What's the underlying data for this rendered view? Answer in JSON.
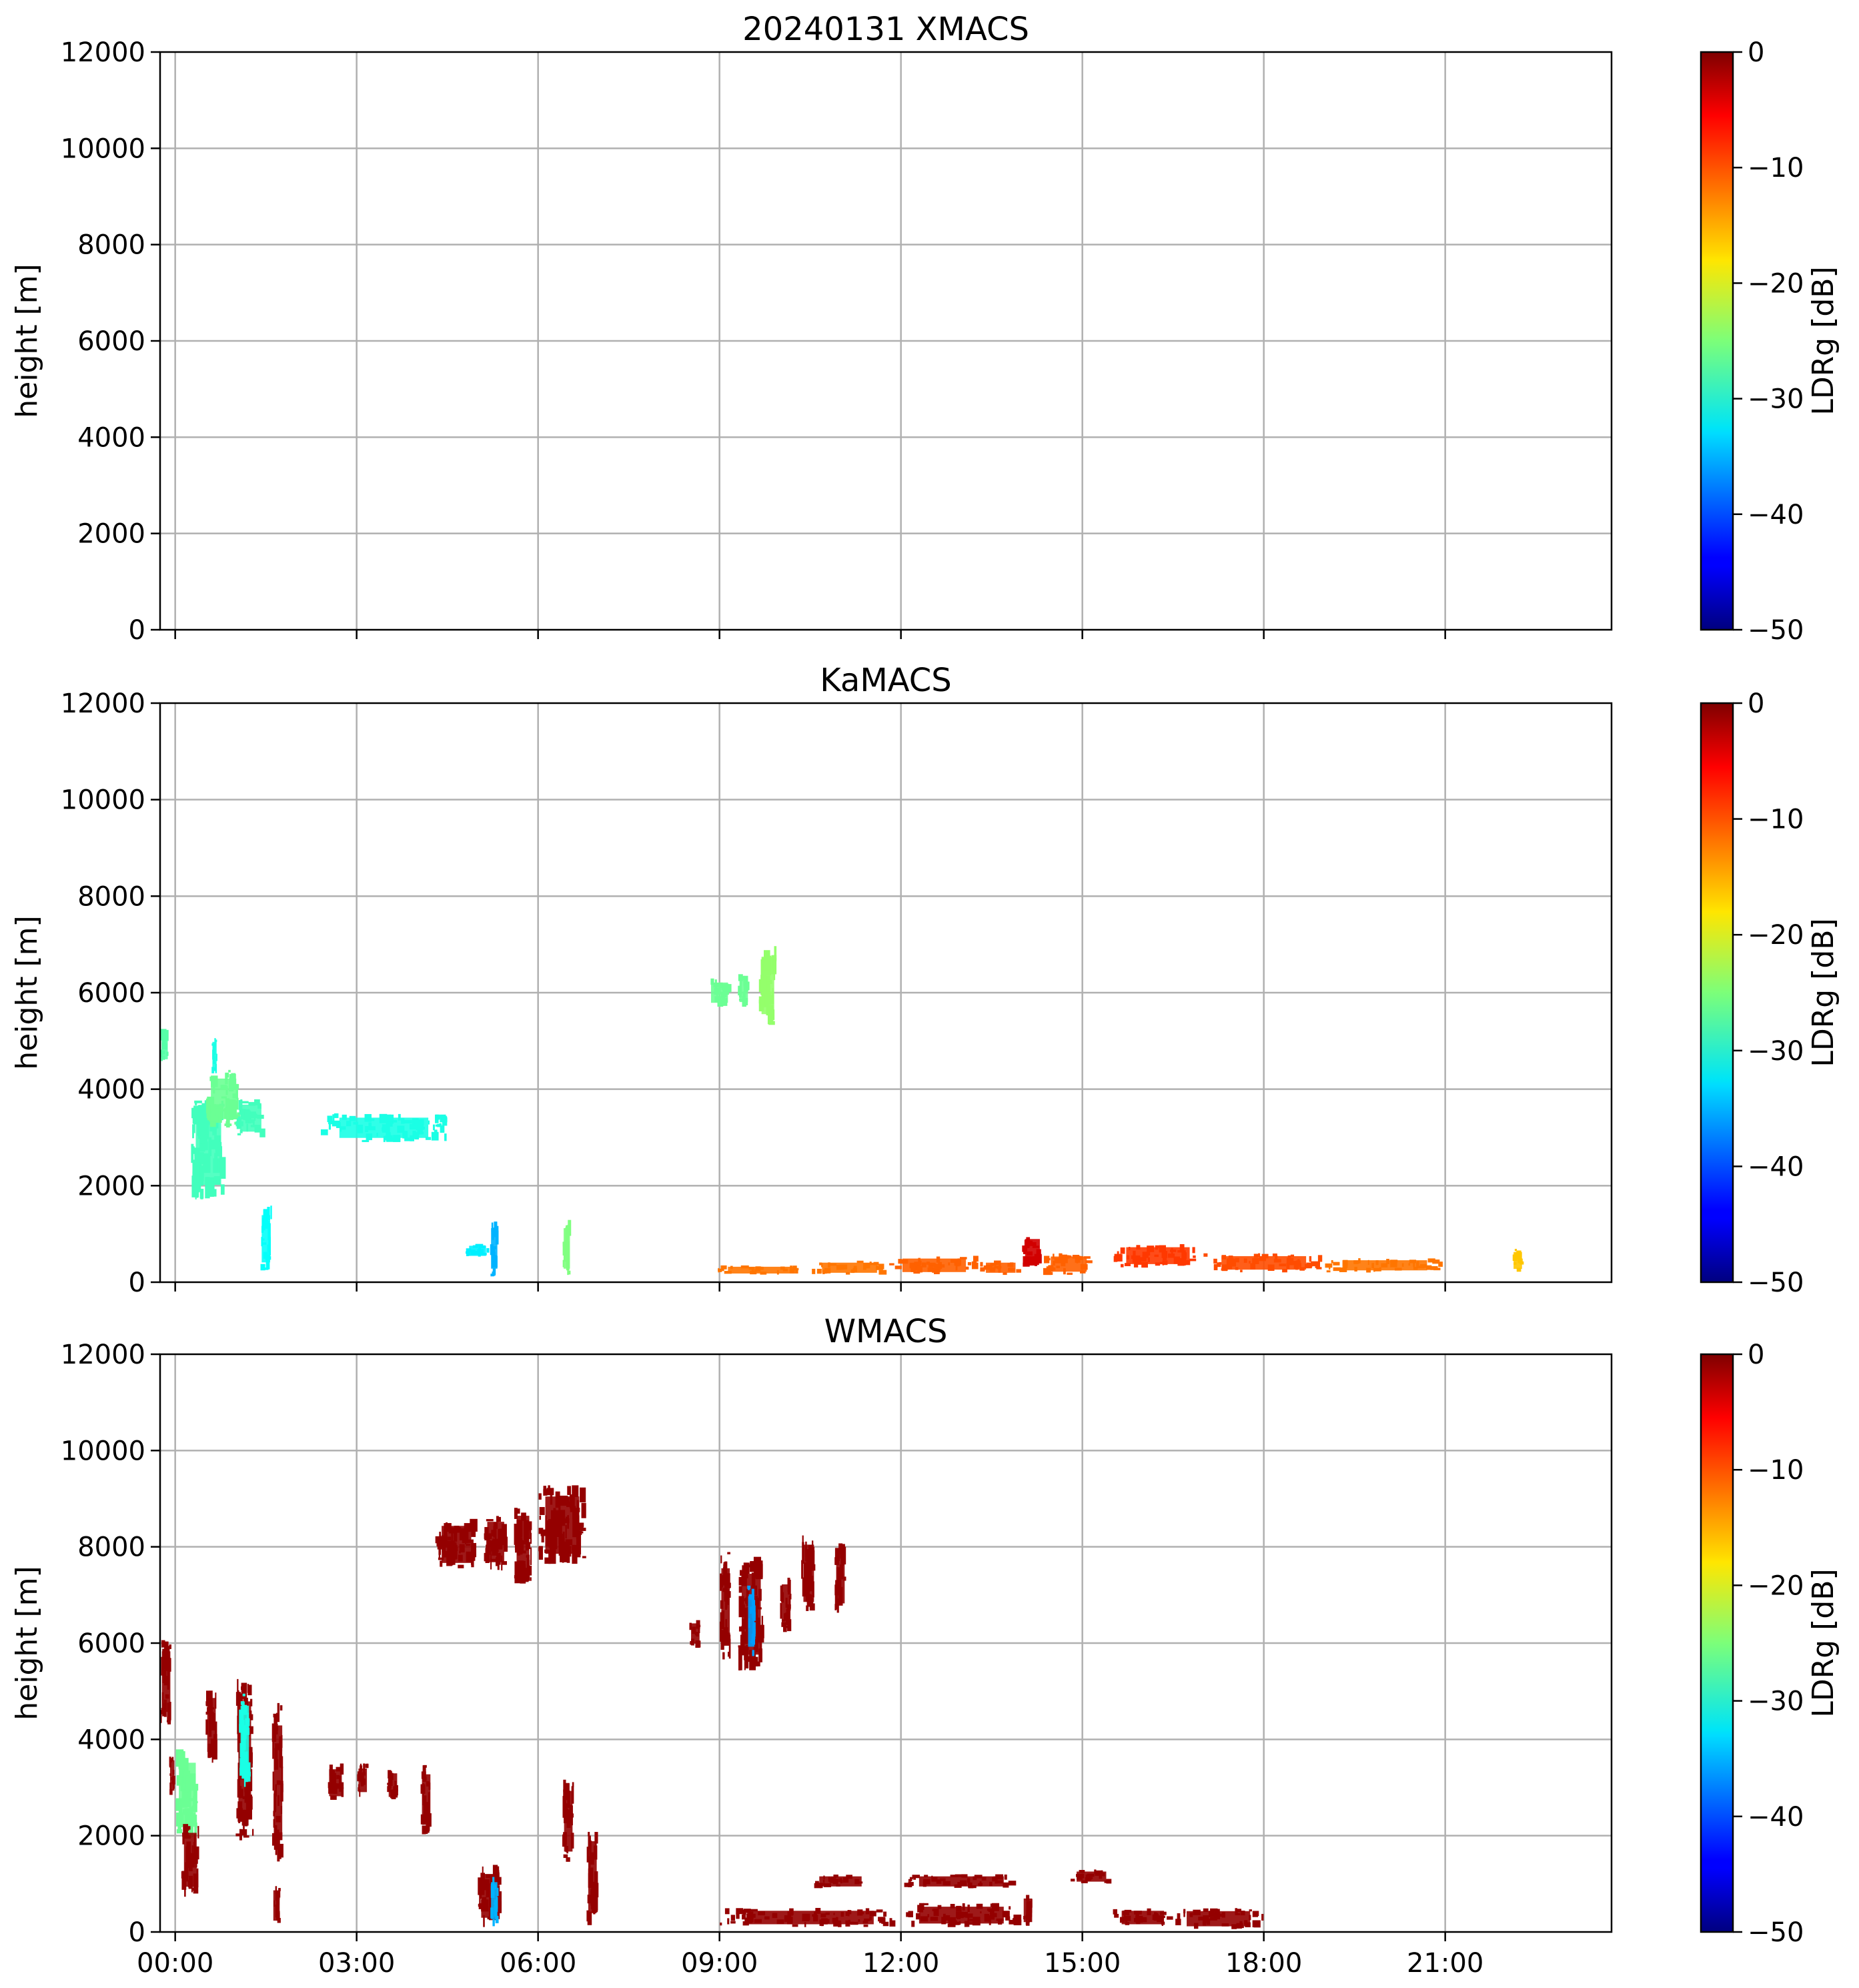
{
  "chart_data": [
    {
      "type": "heatmap",
      "title": "20240131 XMACS",
      "xlabel": "",
      "ylabel": "height [m]",
      "ylim": [
        0,
        12000
      ],
      "xlim": [
        -0.25,
        23.75
      ],
      "yticks": [
        "0",
        "2000",
        "4000",
        "6000",
        "8000",
        "10000",
        "12000"
      ],
      "xticks": [],
      "grid": true,
      "colorbar": {
        "label": "LDRg [dB]",
        "range": [
          -50,
          0
        ],
        "ticks": [
          "0",
          "−10",
          "−20",
          "−30",
          "−40",
          "−50"
        ],
        "colormap": "jet"
      },
      "regions": []
    },
    {
      "type": "heatmap",
      "title": "KaMACS",
      "xlabel": "",
      "ylabel": "height [m]",
      "ylim": [
        0,
        12000
      ],
      "xlim": [
        -0.25,
        23.75
      ],
      "yticks": [
        "0",
        "2000",
        "4000",
        "6000",
        "8000",
        "10000",
        "12000"
      ],
      "xticks": [],
      "grid": true,
      "colorbar": {
        "label": "LDRg [dB]",
        "range": [
          -50,
          0
        ],
        "ticks": [
          "0",
          "−10",
          "−20",
          "−30",
          "−40",
          "−50"
        ],
        "colormap": "jet"
      },
      "regions": [
        {
          "t0": -0.25,
          "t1": -0.1,
          "z0": 4500,
          "z1": 5300,
          "value": -27
        },
        {
          "t0": 0.25,
          "t1": 0.85,
          "z0": 1700,
          "z1": 3800,
          "value": -28
        },
        {
          "t0": 0.5,
          "t1": 1.1,
          "z0": 3200,
          "z1": 4400,
          "value": -26
        },
        {
          "t0": 0.6,
          "t1": 0.7,
          "z0": 4300,
          "z1": 5100,
          "value": -30
        },
        {
          "t0": 1.0,
          "t1": 1.5,
          "z0": 3000,
          "z1": 3800,
          "value": -28
        },
        {
          "t0": 1.4,
          "t1": 1.6,
          "z0": 200,
          "z1": 1600,
          "value": -31
        },
        {
          "t0": 2.4,
          "t1": 4.5,
          "z0": 2900,
          "z1": 3500,
          "value": -30
        },
        {
          "t0": 4.8,
          "t1": 5.2,
          "z0": 500,
          "z1": 800,
          "value": -32
        },
        {
          "t0": 5.2,
          "t1": 5.35,
          "z0": 100,
          "z1": 1300,
          "value": -35
        },
        {
          "t0": 6.4,
          "t1": 6.55,
          "z0": 100,
          "z1": 1300,
          "value": -25
        },
        {
          "t0": 8.8,
          "t1": 9.2,
          "z0": 5700,
          "z1": 6300,
          "value": -26
        },
        {
          "t0": 9.3,
          "t1": 9.5,
          "z0": 5700,
          "z1": 6400,
          "value": -26
        },
        {
          "t0": 9.65,
          "t1": 9.95,
          "z0": 5300,
          "z1": 7000,
          "value": -24
        },
        {
          "t0": 8.9,
          "t1": 10.5,
          "z0": 150,
          "z1": 350,
          "value": -12
        },
        {
          "t0": 10.5,
          "t1": 11.8,
          "z0": 150,
          "z1": 450,
          "value": -12
        },
        {
          "t0": 11.8,
          "t1": 13.3,
          "z0": 150,
          "z1": 550,
          "value": -11
        },
        {
          "t0": 13.3,
          "t1": 14.0,
          "z0": 150,
          "z1": 450,
          "value": -11
        },
        {
          "t0": 14.0,
          "t1": 14.35,
          "z0": 300,
          "z1": 1000,
          "value": -4
        },
        {
          "t0": 14.35,
          "t1": 15.2,
          "z0": 150,
          "z1": 600,
          "value": -11
        },
        {
          "t0": 15.5,
          "t1": 17.0,
          "z0": 300,
          "z1": 800,
          "value": -9
        },
        {
          "t0": 17.0,
          "t1": 19.0,
          "z0": 200,
          "z1": 600,
          "value": -10
        },
        {
          "t0": 19.0,
          "t1": 21.0,
          "z0": 200,
          "z1": 500,
          "value": -12
        },
        {
          "t0": 22.1,
          "t1": 22.3,
          "z0": 200,
          "z1": 700,
          "value": -16
        }
      ]
    },
    {
      "type": "heatmap",
      "title": "WMACS",
      "xlabel": "",
      "ylabel": "height [m]",
      "ylim": [
        0,
        12000
      ],
      "xlim": [
        -0.25,
        23.75
      ],
      "yticks": [
        "0",
        "2000",
        "4000",
        "6000",
        "8000",
        "10000",
        "12000"
      ],
      "xticks": [
        "00:00",
        "03:00",
        "06:00",
        "09:00",
        "12:00",
        "15:00",
        "18:00",
        "21:00"
      ],
      "grid": true,
      "colorbar": {
        "label": "LDRg [dB]",
        "range": [
          -50,
          0
        ],
        "ticks": [
          "0",
          "−10",
          "−20",
          "−30",
          "−40",
          "−50"
        ],
        "colormap": "jet"
      },
      "regions": [
        {
          "t0": -0.25,
          "t1": -0.05,
          "z0": 4300,
          "z1": 6100,
          "value": -1
        },
        {
          "t0": -0.1,
          "t1": 0.0,
          "z0": 2800,
          "z1": 3700,
          "value": -1
        },
        {
          "t0": 0.0,
          "t1": 0.4,
          "z0": 1900,
          "z1": 3800,
          "value": -26
        },
        {
          "t0": 0.1,
          "t1": 0.4,
          "z0": 700,
          "z1": 2300,
          "value": -1
        },
        {
          "t0": 0.5,
          "t1": 0.7,
          "z0": 3500,
          "z1": 5100,
          "value": -1
        },
        {
          "t0": 1.0,
          "t1": 1.3,
          "z0": 1900,
          "z1": 5300,
          "value": -1
        },
        {
          "t0": 1.05,
          "t1": 1.25,
          "z0": 3000,
          "z1": 5000,
          "value": -30
        },
        {
          "t0": 1.6,
          "t1": 1.8,
          "z0": 1400,
          "z1": 4800,
          "value": -1
        },
        {
          "t0": 1.6,
          "t1": 1.75,
          "z0": 100,
          "z1": 1000,
          "value": -1
        },
        {
          "t0": 2.5,
          "t1": 2.8,
          "z0": 2700,
          "z1": 3500,
          "value": -1
        },
        {
          "t0": 3.0,
          "t1": 3.2,
          "z0": 2800,
          "z1": 3500,
          "value": -1
        },
        {
          "t0": 3.5,
          "t1": 3.7,
          "z0": 2700,
          "z1": 3400,
          "value": -1
        },
        {
          "t0": 4.05,
          "t1": 4.25,
          "z0": 2000,
          "z1": 3500,
          "value": -1
        },
        {
          "t0": 4.3,
          "t1": 5.0,
          "z0": 7500,
          "z1": 8600,
          "value": -1
        },
        {
          "t0": 5.1,
          "t1": 5.5,
          "z0": 7500,
          "z1": 8700,
          "value": -1
        },
        {
          "t0": 5.6,
          "t1": 5.9,
          "z0": 7200,
          "z1": 8900,
          "value": -1
        },
        {
          "t0": 6.0,
          "t1": 6.8,
          "z0": 7600,
          "z1": 9300,
          "value": -1
        },
        {
          "t0": 5.0,
          "t1": 5.4,
          "z0": 100,
          "z1": 1400,
          "value": -1
        },
        {
          "t0": 5.2,
          "t1": 5.35,
          "z0": 100,
          "z1": 1200,
          "value": -35
        },
        {
          "t0": 6.4,
          "t1": 6.6,
          "z0": 1400,
          "z1": 3200,
          "value": -1
        },
        {
          "t0": 6.8,
          "t1": 7.0,
          "z0": 100,
          "z1": 2200,
          "value": -1
        },
        {
          "t0": 8.5,
          "t1": 8.7,
          "z0": 5900,
          "z1": 6500,
          "value": -1
        },
        {
          "t0": 9.0,
          "t1": 9.2,
          "z0": 5600,
          "z1": 7900,
          "value": -1
        },
        {
          "t0": 9.3,
          "t1": 9.75,
          "z0": 5400,
          "z1": 7800,
          "value": -1
        },
        {
          "t0": 9.45,
          "t1": 9.6,
          "z0": 5700,
          "z1": 7200,
          "value": -36
        },
        {
          "t0": 10.0,
          "t1": 10.2,
          "z0": 6200,
          "z1": 7400,
          "value": -1
        },
        {
          "t0": 10.35,
          "t1": 10.6,
          "z0": 6600,
          "z1": 8300,
          "value": -1
        },
        {
          "t0": 10.9,
          "t1": 11.1,
          "z0": 6600,
          "z1": 8100,
          "value": -1
        },
        {
          "t0": 9.0,
          "t1": 12.0,
          "z0": 100,
          "z1": 500,
          "value": -1
        },
        {
          "t0": 10.5,
          "t1": 11.5,
          "z0": 900,
          "z1": 1200,
          "value": -1
        },
        {
          "t0": 12.0,
          "t1": 14.0,
          "z0": 900,
          "z1": 1200,
          "value": -1
        },
        {
          "t0": 12.0,
          "t1": 14.0,
          "z0": 100,
          "z1": 600,
          "value": -1
        },
        {
          "t0": 14.0,
          "t1": 14.2,
          "z0": 100,
          "z1": 800,
          "value": -1
        },
        {
          "t0": 14.8,
          "t1": 15.5,
          "z0": 1000,
          "z1": 1300,
          "value": -1
        },
        {
          "t0": 15.5,
          "t1": 16.5,
          "z0": 100,
          "z1": 500,
          "value": -1
        },
        {
          "t0": 16.5,
          "t1": 18.0,
          "z0": 50,
          "z1": 500,
          "value": -1
        }
      ]
    }
  ]
}
